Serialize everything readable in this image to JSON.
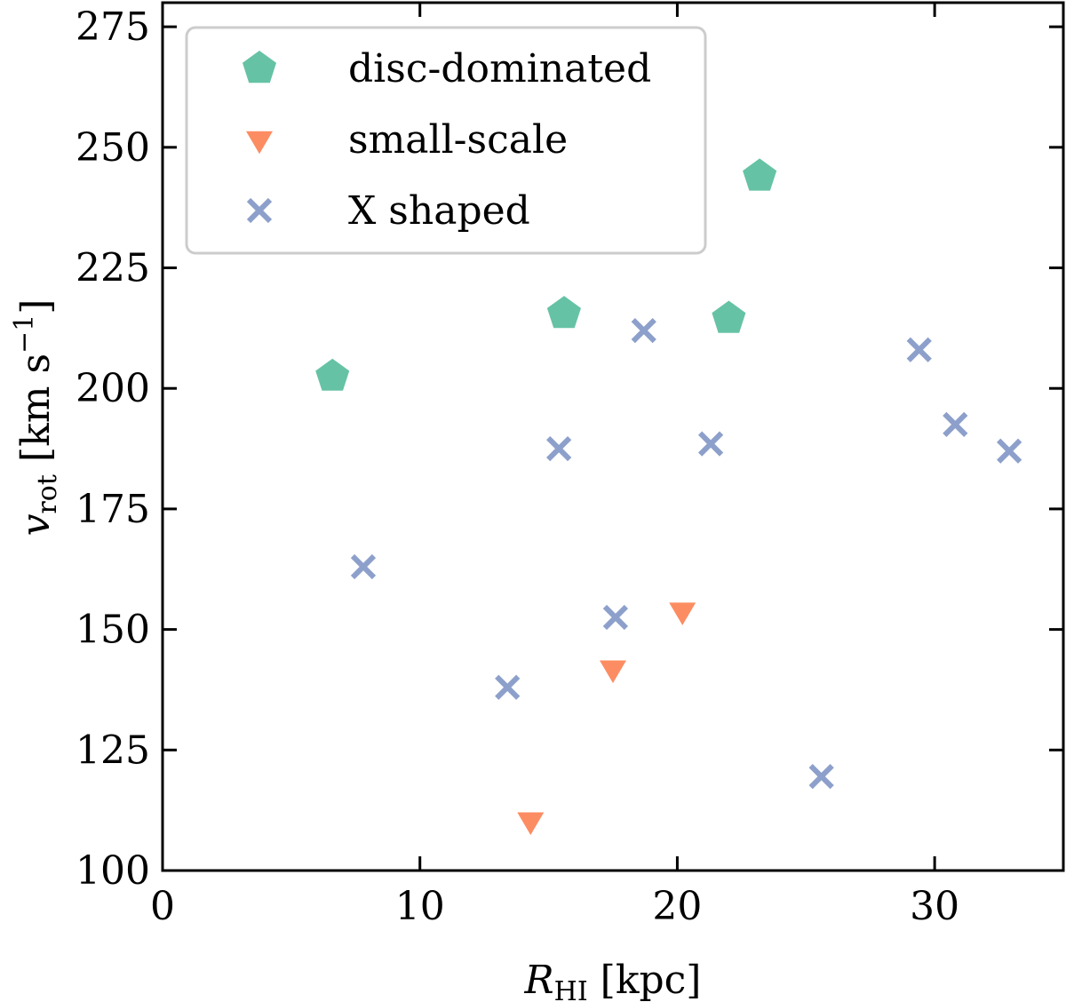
{
  "chart_data": {
    "type": "scatter",
    "xlabel": "R_HI [kpc]",
    "ylabel": "v_rot [km s^-1]",
    "xlim": [
      0,
      35
    ],
    "ylim": [
      100,
      280
    ],
    "x_ticks": [
      0,
      10,
      20,
      30
    ],
    "y_ticks": [
      100,
      125,
      150,
      175,
      200,
      225,
      250,
      275
    ],
    "grid": false,
    "legend_position": "top-left",
    "series": [
      {
        "name": "disc-dominated",
        "marker": "pentagon",
        "color": "#66c2a5",
        "points": [
          {
            "x": 6.6,
            "y": 202.5
          },
          {
            "x": 15.6,
            "y": 215.5
          },
          {
            "x": 22.0,
            "y": 214.5
          },
          {
            "x": 23.2,
            "y": 244.0
          }
        ]
      },
      {
        "name": "small-scale",
        "marker": "triangle-down",
        "color": "#fc8d62",
        "points": [
          {
            "x": 14.3,
            "y": 110.0
          },
          {
            "x": 17.5,
            "y": 141.5
          },
          {
            "x": 20.2,
            "y": 153.5
          }
        ]
      },
      {
        "name": "X shaped",
        "marker": "x",
        "color": "#8da0cb",
        "points": [
          {
            "x": 7.8,
            "y": 163.0
          },
          {
            "x": 13.4,
            "y": 138.0
          },
          {
            "x": 15.4,
            "y": 187.5
          },
          {
            "x": 17.6,
            "y": 152.5
          },
          {
            "x": 18.7,
            "y": 212.0
          },
          {
            "x": 21.3,
            "y": 188.5
          },
          {
            "x": 25.6,
            "y": 119.5
          },
          {
            "x": 29.4,
            "y": 208.0
          },
          {
            "x": 30.8,
            "y": 192.5
          },
          {
            "x": 32.9,
            "y": 187.0
          }
        ]
      }
    ]
  },
  "axis_text": {
    "x_main": "R",
    "x_sub": "HI",
    "x_unit": "[kpc]",
    "y_main": "v",
    "y_sub": "rot",
    "y_unit": "[km s",
    "y_sup": "−1",
    "y_close": "]"
  }
}
